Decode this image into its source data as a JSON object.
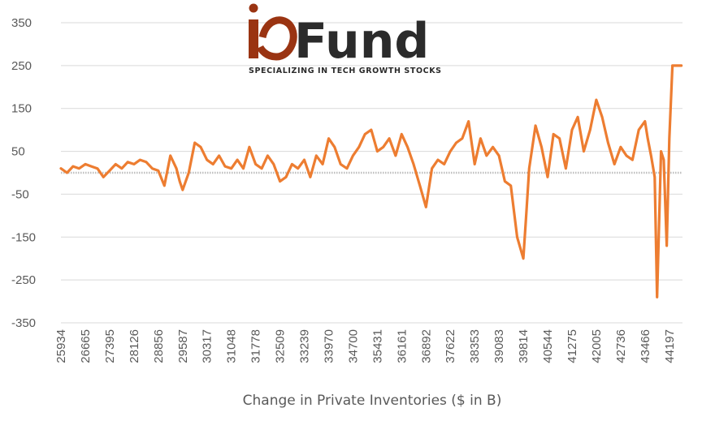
{
  "logo": {
    "brand": "Fund",
    "tagline": "SPECIALIZING IN TECH GROWTH STOCKS",
    "accent_color": "#9a3412",
    "text_color": "#2b2b2b"
  },
  "chart_data": {
    "type": "line",
    "title": "",
    "xlabel": "Change in Private Inventories ($ in B)",
    "ylabel": "",
    "ylim": [
      -350,
      350
    ],
    "yticks": [
      350,
      250,
      150,
      50,
      -50,
      -150,
      -250,
      -350
    ],
    "xlim": [
      25934,
      44593
    ],
    "xticks": [
      25934,
      26665,
      27395,
      28126,
      28856,
      29587,
      30317,
      31048,
      31778,
      32509,
      33239,
      33970,
      34700,
      35431,
      36161,
      36892,
      37622,
      38353,
      39083,
      39814,
      40544,
      41275,
      42005,
      42736,
      43466,
      44197
    ],
    "grid": true,
    "legend": "none",
    "line_color": "#ed7d31",
    "zero_line_color": "#bfbfbf",
    "series": [
      {
        "x": [
          25934,
          26116,
          26298,
          26480,
          26665,
          26845,
          27030,
          27210,
          27395,
          27575,
          27760,
          27940,
          28126,
          28310,
          28495,
          28675,
          28856,
          29040,
          29220,
          29400,
          29500,
          29587,
          29770,
          29950,
          30130,
          30317,
          30500,
          30680,
          30860,
          31048,
          31230,
          31410,
          31590,
          31778,
          31960,
          32140,
          32320,
          32509,
          32690,
          32870,
          33050,
          33239,
          33420,
          33600,
          33790,
          33970,
          34150,
          34330,
          34520,
          34700,
          34880,
          35060,
          35250,
          35431,
          35610,
          35790,
          35980,
          36161,
          36340,
          36520,
          36710,
          36892,
          37070,
          37250,
          37440,
          37622,
          37800,
          37980,
          38170,
          38353,
          38530,
          38710,
          38900,
          39083,
          39260,
          39440,
          39630,
          39814,
          39900,
          39990,
          40180,
          40360,
          40544,
          40720,
          40900,
          41090,
          41275,
          41450,
          41630,
          41820,
          42005,
          42180,
          42360,
          42550,
          42736,
          42910,
          43090,
          43280,
          43466,
          43550,
          43650,
          43760,
          43830,
          43950,
          44030,
          44120,
          44197,
          44290,
          44380,
          44470,
          44560
        ],
        "y": [
          10,
          0,
          15,
          10,
          20,
          15,
          10,
          -10,
          5,
          20,
          10,
          25,
          20,
          30,
          25,
          10,
          5,
          -30,
          40,
          10,
          -20,
          -40,
          0,
          70,
          60,
          30,
          20,
          40,
          15,
          10,
          30,
          10,
          60,
          20,
          10,
          40,
          20,
          -20,
          -10,
          20,
          10,
          30,
          -10,
          40,
          20,
          80,
          60,
          20,
          10,
          40,
          60,
          90,
          100,
          50,
          60,
          80,
          40,
          90,
          60,
          20,
          -30,
          -80,
          10,
          30,
          20,
          50,
          70,
          80,
          120,
          20,
          80,
          40,
          60,
          40,
          -20,
          -30,
          -150,
          -200,
          -100,
          10,
          110,
          60,
          -10,
          90,
          80,
          10,
          100,
          130,
          50,
          100,
          170,
          130,
          70,
          20,
          60,
          40,
          30,
          100,
          120,
          80,
          40,
          -10,
          -290,
          50,
          30,
          -170,
          80,
          250,
          250,
          250,
          250
        ]
      }
    ]
  }
}
